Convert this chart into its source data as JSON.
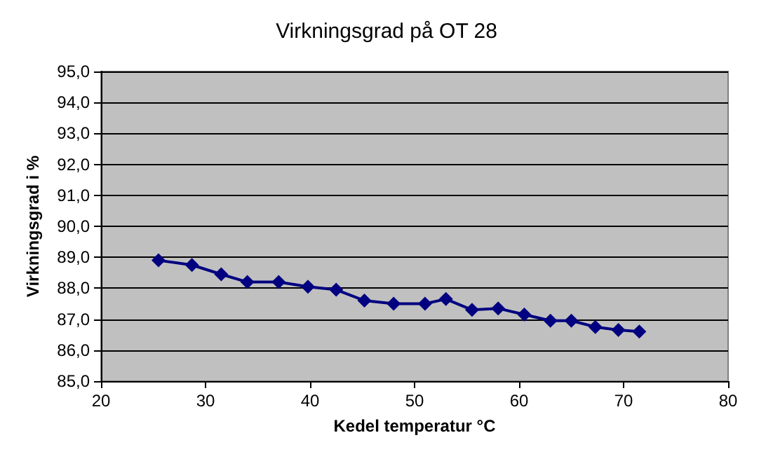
{
  "chart_data": {
    "type": "line",
    "title": "Virkningsgrad på OT 28",
    "xlabel": "Kedel temperatur °C",
    "ylabel": "Virkningsgrad i %",
    "x": [
      25.5,
      28.7,
      31.5,
      34,
      37,
      39.8,
      42.5,
      45.2,
      48,
      51,
      53,
      55.5,
      58,
      60.5,
      63,
      65,
      67.3,
      69.5,
      71.5
    ],
    "series": [
      {
        "color": "#000080",
        "values": [
          88.9,
          88.75,
          88.45,
          88.2,
          88.2,
          88.05,
          87.95,
          87.6,
          87.5,
          87.5,
          87.65,
          87.3,
          87.35,
          87.15,
          86.95,
          86.95,
          86.75,
          86.65,
          86.6
        ]
      }
    ],
    "xlim": [
      20,
      80
    ],
    "xticks": [
      20,
      30,
      40,
      50,
      60,
      70,
      80
    ],
    "ylim": [
      85,
      95
    ],
    "yticks": [
      {
        "value": 85,
        "label": "85,0"
      },
      {
        "value": 86,
        "label": "86,0"
      },
      {
        "value": 87,
        "label": "87,0"
      },
      {
        "value": 88,
        "label": "88,0"
      },
      {
        "value": 89,
        "label": "89,0"
      },
      {
        "value": 90,
        "label": "90,0"
      },
      {
        "value": 91,
        "label": "91,0"
      },
      {
        "value": 92,
        "label": "92,0"
      },
      {
        "value": 93,
        "label": "93,0"
      },
      {
        "value": 94,
        "label": "94,0"
      },
      {
        "value": 95,
        "label": "95,0"
      }
    ],
    "grid": "y",
    "marker": "diamond",
    "line_style": "solid"
  }
}
